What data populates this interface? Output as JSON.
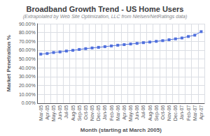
{
  "chart_data": {
    "type": "line",
    "title": "Broadband Growth Trend - US Home Users",
    "subtitle": "(Extrapolated by Web Site Optimization, LLC from Nielsen/NetRatings data)",
    "x_label": "Month (starting at March 2005)",
    "y_label": "Market Penetration %",
    "categories": [
      "Mar-05",
      "Apr-05",
      "May-05",
      "Jun-05",
      "Jul-05",
      "Aug-05",
      "Sep-05",
      "Oct-05",
      "Nov-05",
      "Dec-05",
      "Jan-06",
      "Feb-06",
      "Mar-06",
      "Apr-06",
      "May-06",
      "Jun-06",
      "Jul-06",
      "Aug-06",
      "Sep-06",
      "Oct-06",
      "Nov-06",
      "Dec-06",
      "Jan-07",
      "Feb-07",
      "Mar-07",
      "Apr-07"
    ],
    "values": [
      0.555,
      0.562,
      0.573,
      0.58,
      0.59,
      0.598,
      0.608,
      0.617,
      0.625,
      0.632,
      0.64,
      0.648,
      0.656,
      0.663,
      0.67,
      0.677,
      0.685,
      0.692,
      0.7,
      0.708,
      0.718,
      0.728,
      0.738,
      0.755,
      0.77,
      0.81
    ],
    "marker": "square",
    "ylim": [
      0.0,
      0.9
    ],
    "yticks": [
      {
        "value": 0.0,
        "label": "0.00%"
      },
      {
        "value": 0.1,
        "label": "10.00%"
      },
      {
        "value": 0.2,
        "label": "20.00%"
      },
      {
        "value": 0.3,
        "label": "30.00%"
      },
      {
        "value": 0.4,
        "label": "40.00%"
      },
      {
        "value": 0.5,
        "label": "50.00%"
      },
      {
        "value": 0.6,
        "label": "60.00%"
      },
      {
        "value": 0.7,
        "label": "70.00%"
      },
      {
        "value": 0.8,
        "label": "80.00%"
      },
      {
        "value": 0.9,
        "label": "90.00%"
      }
    ],
    "grid": true
  }
}
